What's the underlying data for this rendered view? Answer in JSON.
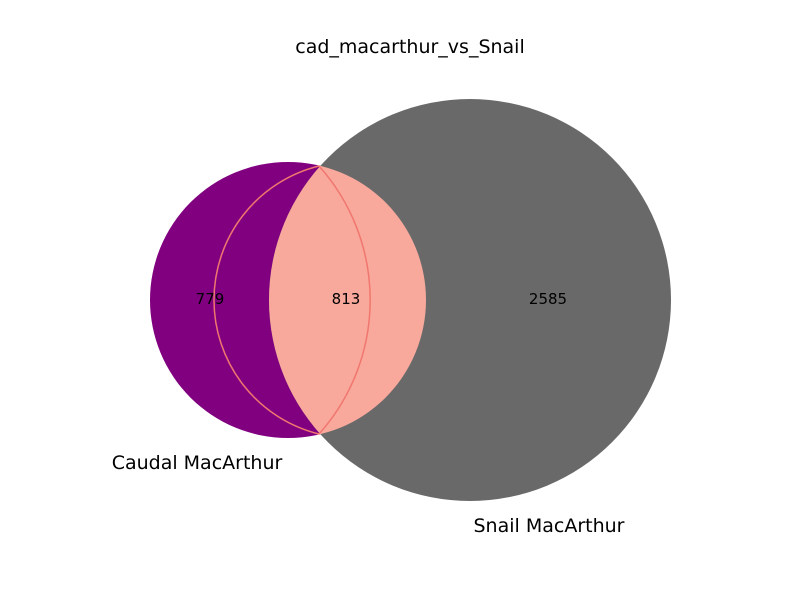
{
  "title": "cad_macarthur_vs_Snail",
  "chart_data": {
    "type": "venn",
    "sets": [
      {
        "name": "Caudal MacArthur",
        "only": 779,
        "color": "#800080"
      },
      {
        "name": "Snail MacArthur",
        "only": 2585,
        "color": "#696969"
      }
    ],
    "intersection": {
      "count": 813,
      "color": "#f9a89c",
      "edge_color": "#f0776f"
    }
  }
}
